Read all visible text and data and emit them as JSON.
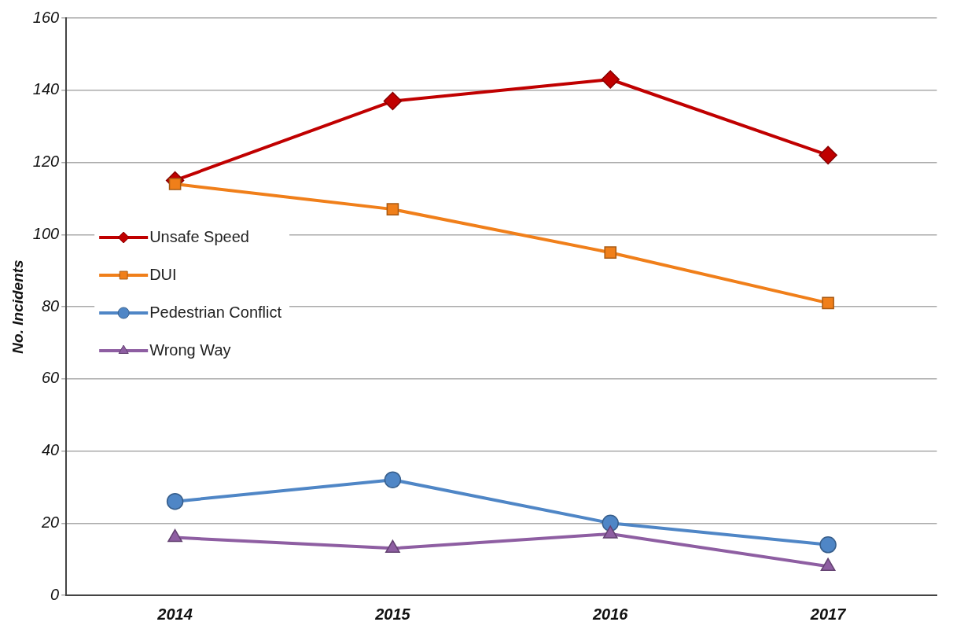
{
  "chart_data": {
    "type": "line",
    "ylabel": "No. Incidents",
    "categories": [
      "2014",
      "2015",
      "2016",
      "2017"
    ],
    "series": [
      {
        "name": "Unsafe Speed",
        "color": "#c00000",
        "marker": "diamond",
        "values": [
          115,
          137,
          143,
          122
        ]
      },
      {
        "name": "DUI",
        "color": "#f07f1a",
        "marker": "square",
        "values": [
          114,
          107,
          95,
          81
        ]
      },
      {
        "name": "Pedestrian Conflict",
        "color": "#4f86c6",
        "marker": "circle",
        "values": [
          26,
          32,
          20,
          14
        ]
      },
      {
        "name": "Wrong Way",
        "color": "#8e5ea2",
        "marker": "triangle",
        "values": [
          16,
          13,
          17,
          8
        ]
      }
    ],
    "ylim": [
      0,
      160
    ],
    "yticks": [
      0,
      20,
      40,
      60,
      80,
      100,
      120,
      140,
      160
    ],
    "grid": "y",
    "legend": "left",
    "line_style": "solid"
  }
}
